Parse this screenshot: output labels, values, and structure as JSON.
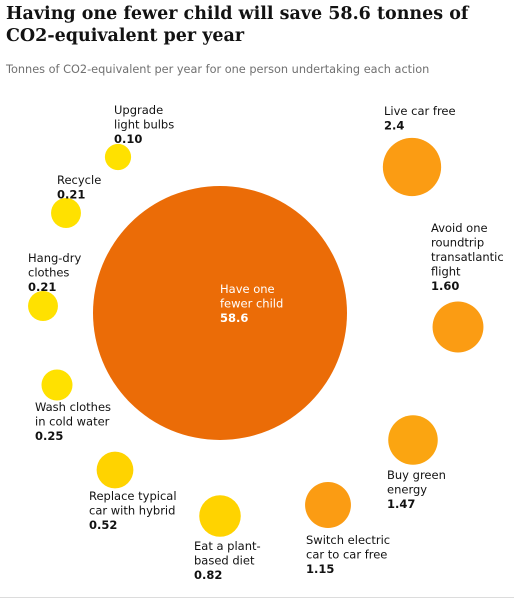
{
  "title": "Having one fewer child will save 58.6 tonnes of CO2-equivalent per year",
  "subtitle": "Tonnes of CO2-equivalent per year for one person undertaking each action",
  "colors": {
    "largest": "#eb6c07",
    "high": "#fb9c13",
    "mid": "#fba511",
    "low": "#ffd300",
    "lowest": "#ffe100"
  },
  "chart_data": {
    "type": "bubble",
    "title": "Having one fewer child will save 58.6 tonnes of CO2-equivalent per year",
    "subtitle": "Tonnes of CO2-equivalent per year for one person undertaking each action",
    "unit": "Tonnes of CO2-equivalent per year",
    "items": [
      {
        "id": "fewer-child",
        "label_lines": [
          "Have one",
          "fewer child"
        ],
        "value": 58.6,
        "value_label": "58.6",
        "color": "#eb6c07"
      },
      {
        "id": "car-free",
        "label_lines": [
          "Live car free"
        ],
        "value": 2.4,
        "value_label": "2.4",
        "color": "#fb9c13"
      },
      {
        "id": "transatlantic-flight",
        "label_lines": [
          "Avoid one",
          "roundtrip",
          "transatlantic",
          "flight"
        ],
        "value": 1.6,
        "value_label": "1.60",
        "color": "#fb9c13"
      },
      {
        "id": "green-energy",
        "label_lines": [
          "Buy green",
          "energy"
        ],
        "value": 1.47,
        "value_label": "1.47",
        "color": "#fba511"
      },
      {
        "id": "electric-car",
        "label_lines": [
          "Switch electric",
          "car to car free"
        ],
        "value": 1.15,
        "value_label": "1.15",
        "color": "#fb9c13"
      },
      {
        "id": "plant-diet",
        "label_lines": [
          "Eat a plant-",
          "based diet"
        ],
        "value": 0.82,
        "value_label": "0.82",
        "color": "#ffd300"
      },
      {
        "id": "hybrid-car",
        "label_lines": [
          "Replace typical",
          "car with hybrid"
        ],
        "value": 0.52,
        "value_label": "0.52",
        "color": "#ffd300"
      },
      {
        "id": "cold-wash",
        "label_lines": [
          "Wash clothes",
          "in cold water"
        ],
        "value": 0.25,
        "value_label": "0.25",
        "color": "#ffe100"
      },
      {
        "id": "hang-dry",
        "label_lines": [
          "Hang-dry",
          "clothes"
        ],
        "value": 0.21,
        "value_label": "0.21",
        "color": "#ffe100"
      },
      {
        "id": "recycle",
        "label_lines": [
          "Recycle"
        ],
        "value": 0.21,
        "value_label": "0.21",
        "color": "#ffe100"
      },
      {
        "id": "light-bulbs",
        "label_lines": [
          "Upgrade",
          "light bulbs"
        ],
        "value": 0.1,
        "value_label": "0.10",
        "color": "#ffe100"
      }
    ]
  }
}
